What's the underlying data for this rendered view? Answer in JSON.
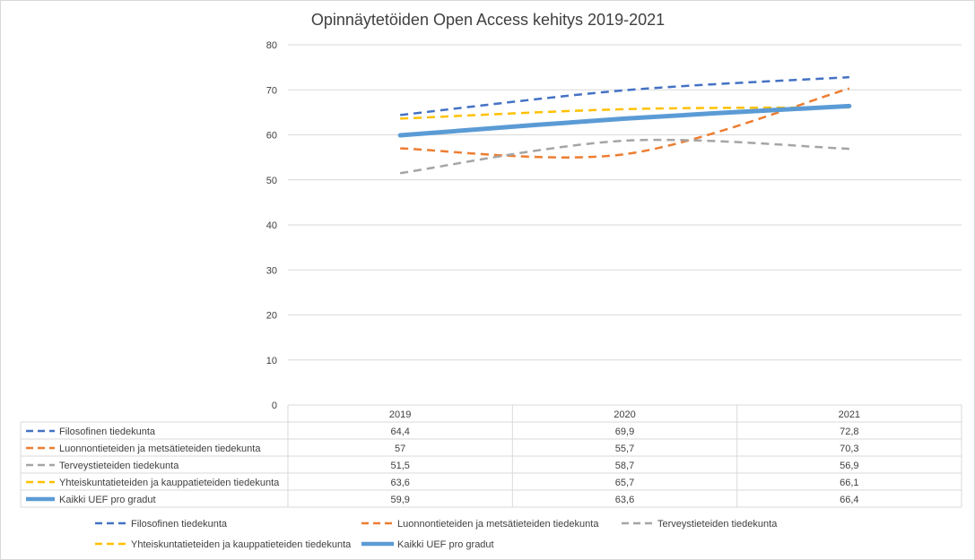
{
  "chart_data": {
    "type": "line",
    "title": "Opinnäytetöiden Open Access kehitys 2019-2021",
    "xlabel": "",
    "ylabel": "",
    "categories": [
      "2019",
      "2020",
      "2021"
    ],
    "ylim": [
      0,
      80
    ],
    "yticks": [
      "0",
      "10",
      "20",
      "30",
      "40",
      "50",
      "60",
      "70",
      "80"
    ],
    "grid": true,
    "legend_position": "bottom",
    "data_table": true,
    "series": [
      {
        "name": "Filosofinen tiedekunta",
        "values": [
          64.4,
          69.9,
          72.8
        ],
        "labels": [
          "64,4",
          "69,9",
          "72,8"
        ],
        "color": "#4472C4",
        "style": "dashed"
      },
      {
        "name": "Luonnontieteiden ja metsätieteiden tiedekunta",
        "values": [
          57,
          55.7,
          70.3
        ],
        "labels": [
          "57",
          "55,7",
          "70,3"
        ],
        "color": "#ED7D31",
        "style": "dashed"
      },
      {
        "name": "Terveystieteiden tiedekunta",
        "values": [
          51.5,
          58.7,
          56.9
        ],
        "labels": [
          "51,5",
          "58,7",
          "56,9"
        ],
        "color": "#A5A5A5",
        "style": "dashed"
      },
      {
        "name": "Yhteiskuntatieteiden ja kauppatieteiden tiedekunta",
        "values": [
          63.6,
          65.7,
          66.1
        ],
        "labels": [
          "63,6",
          "65,7",
          "66,1"
        ],
        "color": "#FFC000",
        "style": "dashed"
      },
      {
        "name": "Kaikki UEF pro gradut",
        "values": [
          59.9,
          63.6,
          66.4
        ],
        "labels": [
          "59,9",
          "63,6",
          "66,4"
        ],
        "color": "#5B9BD5",
        "style": "solid"
      }
    ]
  }
}
